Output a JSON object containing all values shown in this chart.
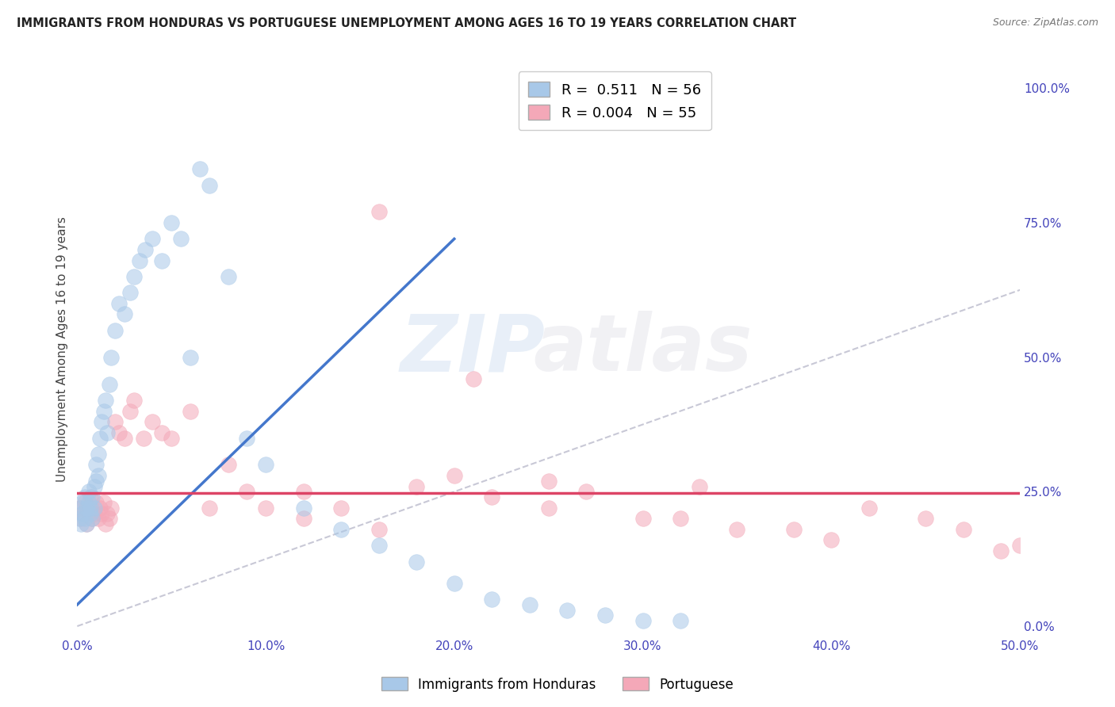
{
  "title": "IMMIGRANTS FROM HONDURAS VS PORTUGUESE UNEMPLOYMENT AMONG AGES 16 TO 19 YEARS CORRELATION CHART",
  "source": "Source: ZipAtlas.com",
  "ylabel": "Unemployment Among Ages 16 to 19 years",
  "xlim": [
    0.0,
    0.5
  ],
  "ylim": [
    -0.02,
    1.05
  ],
  "xticks": [
    0.0,
    0.1,
    0.2,
    0.3,
    0.4,
    0.5
  ],
  "xticklabels": [
    "0.0%",
    "10.0%",
    "20.0%",
    "30.0%",
    "40.0%",
    "50.0%"
  ],
  "yticks_right": [
    0.0,
    0.25,
    0.5,
    0.75,
    1.0
  ],
  "yticklabels_right": [
    "0.0%",
    "25.0%",
    "50.0%",
    "75.0%",
    "100.0%"
  ],
  "legend_r1": "R =  0.511",
  "legend_n1": "N = 56",
  "legend_r2": "R = 0.004",
  "legend_n2": "N = 55",
  "series1_label": "Immigrants from Honduras",
  "series2_label": "Portuguese",
  "color1": "#a8c8e8",
  "color2": "#f4a8b8",
  "trendline1_color": "#4477cc",
  "trendline2_color": "#dd4466",
  "background_color": "#ffffff",
  "grid_color": "#cccccc",
  "scatter1_x": [
    0.001,
    0.002,
    0.002,
    0.003,
    0.003,
    0.004,
    0.004,
    0.005,
    0.005,
    0.006,
    0.006,
    0.007,
    0.007,
    0.008,
    0.008,
    0.009,
    0.009,
    0.01,
    0.01,
    0.011,
    0.011,
    0.012,
    0.013,
    0.014,
    0.015,
    0.016,
    0.017,
    0.018,
    0.02,
    0.022,
    0.025,
    0.028,
    0.03,
    0.033,
    0.036,
    0.04,
    0.045,
    0.05,
    0.055,
    0.06,
    0.065,
    0.07,
    0.08,
    0.09,
    0.1,
    0.12,
    0.14,
    0.16,
    0.18,
    0.2,
    0.22,
    0.24,
    0.26,
    0.28,
    0.3,
    0.32
  ],
  "scatter1_y": [
    0.2,
    0.22,
    0.19,
    0.23,
    0.21,
    0.24,
    0.2,
    0.22,
    0.19,
    0.23,
    0.25,
    0.21,
    0.22,
    0.2,
    0.24,
    0.26,
    0.22,
    0.3,
    0.27,
    0.32,
    0.28,
    0.35,
    0.38,
    0.4,
    0.42,
    0.36,
    0.45,
    0.5,
    0.55,
    0.6,
    0.58,
    0.62,
    0.65,
    0.68,
    0.7,
    0.72,
    0.68,
    0.75,
    0.72,
    0.5,
    0.85,
    0.82,
    0.65,
    0.35,
    0.3,
    0.22,
    0.18,
    0.15,
    0.12,
    0.08,
    0.05,
    0.04,
    0.03,
    0.02,
    0.01,
    0.01
  ],
  "scatter2_x": [
    0.001,
    0.002,
    0.003,
    0.004,
    0.005,
    0.006,
    0.007,
    0.008,
    0.009,
    0.01,
    0.011,
    0.012,
    0.013,
    0.014,
    0.015,
    0.016,
    0.017,
    0.018,
    0.02,
    0.022,
    0.025,
    0.028,
    0.03,
    0.035,
    0.04,
    0.045,
    0.05,
    0.06,
    0.07,
    0.08,
    0.09,
    0.1,
    0.12,
    0.14,
    0.16,
    0.18,
    0.2,
    0.22,
    0.25,
    0.27,
    0.3,
    0.32,
    0.35,
    0.38,
    0.4,
    0.42,
    0.45,
    0.47,
    0.49,
    0.5,
    0.16,
    0.21,
    0.12,
    0.25,
    0.33
  ],
  "scatter2_y": [
    0.22,
    0.2,
    0.21,
    0.23,
    0.19,
    0.22,
    0.24,
    0.2,
    0.21,
    0.23,
    0.2,
    0.22,
    0.21,
    0.23,
    0.19,
    0.21,
    0.2,
    0.22,
    0.38,
    0.36,
    0.35,
    0.4,
    0.42,
    0.35,
    0.38,
    0.36,
    0.35,
    0.4,
    0.22,
    0.3,
    0.25,
    0.22,
    0.2,
    0.22,
    0.18,
    0.26,
    0.28,
    0.24,
    0.22,
    0.25,
    0.2,
    0.2,
    0.18,
    0.18,
    0.16,
    0.22,
    0.2,
    0.18,
    0.14,
    0.15,
    0.77,
    0.46,
    0.25,
    0.27,
    0.26
  ],
  "trendline1_x": [
    0.0,
    0.2
  ],
  "trendline1_y": [
    0.04,
    0.72
  ],
  "trendline2_x": [
    0.0,
    0.5
  ],
  "trendline2_y": [
    0.248,
    0.248
  ],
  "refline_x": [
    0.0,
    0.8
  ],
  "refline_y": [
    0.0,
    1.0
  ]
}
